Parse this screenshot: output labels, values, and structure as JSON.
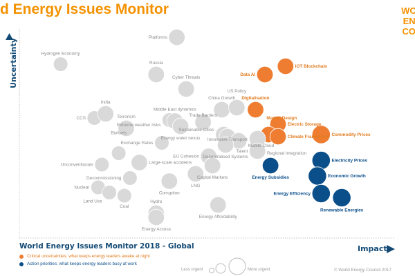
{
  "header": {
    "title": "d Energy Issues Monitor",
    "logo_text": "WORLD ENERGY COUNCIL"
  },
  "footer": {
    "subtitle": "World Energy Issues Monitor 2018 - Global",
    "legend": [
      {
        "label": "Critical uncertainties: what keeps energy leaders awake at night",
        "color": "#EE7D31"
      },
      {
        "label": "Action priorities: what keeps energy leaders busy at work",
        "color": "#0B4F8A"
      }
    ],
    "size_legend": {
      "less": "Less urgent",
      "more": "More urgent"
    },
    "copyright": "© World Energy Council 2017"
  },
  "chart_data": {
    "type": "scatter",
    "xlabel": "Impact",
    "ylabel": "Uncertainty",
    "xlim": [
      0,
      10
    ],
    "ylim": [
      0,
      10
    ],
    "grid": false,
    "colors": {
      "critical": "#EE7D31",
      "action": "#0B4F8A",
      "other": "#D9D9D9"
    },
    "points": [
      {
        "label": "Platforms",
        "x": 4.2,
        "y": 9.7,
        "size": 2,
        "group": "other",
        "label_side": "left"
      },
      {
        "label": "Hydrogen Economy",
        "x": 1.1,
        "y": 8.4,
        "size": 1,
        "group": "other",
        "label_side": "top"
      },
      {
        "label": "Russia",
        "x": 3.65,
        "y": 7.9,
        "size": 2,
        "group": "other",
        "label_side": "top"
      },
      {
        "label": "Cyber Threats",
        "x": 4.45,
        "y": 7.2,
        "size": 2,
        "group": "other",
        "label_side": "top"
      },
      {
        "label": "Data AI",
        "x": 6.55,
        "y": 7.9,
        "size": 2,
        "group": "critical",
        "label_side": "left"
      },
      {
        "label": "IOT Blockchain",
        "x": 7.1,
        "y": 8.3,
        "size": 2,
        "group": "critical",
        "label_side": "right"
      },
      {
        "label": "China Growth",
        "x": 5.4,
        "y": 6.2,
        "size": 2,
        "group": "other",
        "label_side": "top"
      },
      {
        "label": "US Policy",
        "x": 5.8,
        "y": 6.3,
        "size": 2,
        "group": "other",
        "label_side": "top"
      },
      {
        "label": "Digitalisation",
        "x": 6.3,
        "y": 6.2,
        "size": 2,
        "group": "critical",
        "label_side": "top"
      },
      {
        "label": "Electric Storage",
        "x": 6.9,
        "y": 5.5,
        "size": 2,
        "group": "critical",
        "label_side": "right"
      },
      {
        "label": "Market Design",
        "x": 6.65,
        "y": 5.0,
        "size": 2,
        "group": "critical",
        "label_side": "topright"
      },
      {
        "label": "Climate Framework",
        "x": 6.9,
        "y": 4.9,
        "size": 2,
        "group": "critical",
        "label_side": "right"
      },
      {
        "label": "Commodity Prices",
        "x": 8.05,
        "y": 5.0,
        "size": 3,
        "group": "critical",
        "label_side": "right"
      },
      {
        "label": "CCS",
        "x": 2.0,
        "y": 5.8,
        "size": 1,
        "group": "other",
        "label_side": "left"
      },
      {
        "label": "India",
        "x": 2.3,
        "y": 6.0,
        "size": 2,
        "group": "other",
        "label_side": "top"
      },
      {
        "label": "Terrorism",
        "x": 2.85,
        "y": 5.3,
        "size": 2,
        "group": "other",
        "label_side": "top"
      },
      {
        "label": "Extreme weather risks",
        "x": 4.0,
        "y": 5.7,
        "size": 1,
        "group": "other",
        "label_side": "left"
      },
      {
        "label": "Middle East dynamics",
        "x": 4.15,
        "y": 5.65,
        "size": 2,
        "group": "other",
        "label_side": "top"
      },
      {
        "label": "Energy water nexus",
        "x": 4.3,
        "y": 5.4,
        "size": 2,
        "group": "other",
        "label_side": "bottom"
      },
      {
        "label": "Trade Barriers",
        "x": 4.9,
        "y": 5.6,
        "size": 2,
        "group": "other",
        "label_side": "top"
      },
      {
        "label": "Exchange Rates",
        "x": 3.8,
        "y": 4.6,
        "size": 1,
        "group": "other",
        "label_side": "left"
      },
      {
        "label": "Sustainable Cities",
        "x": 5.45,
        "y": 5.0,
        "size": 2,
        "group": "other",
        "label_side": "left"
      },
      {
        "label": "Innovative Transport",
        "x": 5.55,
        "y": 4.9,
        "size": 2,
        "group": "other",
        "label_side": "top"
      },
      {
        "label": "Mobile Cloud",
        "x": 5.85,
        "y": 4.7,
        "size": 2,
        "group": "other",
        "label_side": "right"
      },
      {
        "label": "Decentralised Systems",
        "x": 5.5,
        "y": 4.5,
        "size": 2,
        "group": "other",
        "label_side": "bottom"
      },
      {
        "label": "Regional Integration",
        "x": 6.35,
        "y": 4.8,
        "size": 2,
        "group": "other",
        "label_side": "right"
      },
      {
        "label": "Talent",
        "x": 6.35,
        "y": 4.2,
        "size": 2,
        "group": "other",
        "label_side": "left"
      },
      {
        "label": "EU Cohesion",
        "x": 5.05,
        "y": 3.95,
        "size": 2,
        "group": "other",
        "label_side": "left"
      },
      {
        "label": "Capital Markets",
        "x": 5.15,
        "y": 3.5,
        "size": 2,
        "group": "other",
        "label_side": "bottom"
      },
      {
        "label": "Energy Subsidies",
        "x": 6.7,
        "y": 3.5,
        "size": 2,
        "group": "action",
        "label_side": "bottom"
      },
      {
        "label": "Electricity Prices",
        "x": 8.05,
        "y": 3.75,
        "size": 3,
        "group": "action",
        "label_side": "right"
      },
      {
        "label": "Economic Growth",
        "x": 7.95,
        "y": 3.0,
        "size": 3,
        "group": "action",
        "label_side": "right"
      },
      {
        "label": "Energy Efficiency",
        "x": 8.05,
        "y": 2.15,
        "size": 3,
        "group": "action",
        "label_side": "left"
      },
      {
        "label": "Renewable Energies",
        "x": 8.6,
        "y": 1.95,
        "size": 3,
        "group": "action",
        "label_side": "bottom"
      },
      {
        "label": "Biofuels",
        "x": 2.65,
        "y": 4.1,
        "size": 1,
        "group": "other",
        "label_side": "top"
      },
      {
        "label": "Unconventionals",
        "x": 2.2,
        "y": 3.55,
        "size": 1,
        "group": "other",
        "label_side": "left"
      },
      {
        "label": "Large-scale accidents",
        "x": 3.2,
        "y": 3.65,
        "size": 2,
        "group": "other",
        "label_side": "right"
      },
      {
        "label": "Decommissioning",
        "x": 2.95,
        "y": 2.9,
        "size": 1,
        "group": "other",
        "label_side": "left"
      },
      {
        "label": "Nuclear",
        "x": 2.1,
        "y": 2.45,
        "size": 1,
        "group": "other",
        "label_side": "left"
      },
      {
        "label": "Land Use",
        "x": 2.4,
        "y": 2.2,
        "size": 1,
        "group": "other",
        "label_side": "bottomleft"
      },
      {
        "label": "Coal",
        "x": 2.8,
        "y": 2.05,
        "size": 1,
        "group": "other",
        "label_side": "bottom"
      },
      {
        "label": "Corruption",
        "x": 4.0,
        "y": 2.75,
        "size": 2,
        "group": "other",
        "label_side": "bottom"
      },
      {
        "label": "LNG",
        "x": 4.7,
        "y": 3.1,
        "size": 2,
        "group": "other",
        "label_side": "bottom"
      },
      {
        "label": "Energy Affordability",
        "x": 5.3,
        "y": 1.6,
        "size": 2,
        "group": "other",
        "label_side": "bottom"
      },
      {
        "label": "Hydro",
        "x": 3.65,
        "y": 1.2,
        "size": 2,
        "group": "other",
        "label_side": "top"
      },
      {
        "label": "Energy Access",
        "x": 3.65,
        "y": 1.0,
        "size": 2,
        "group": "other",
        "label_side": "bottom"
      }
    ]
  }
}
